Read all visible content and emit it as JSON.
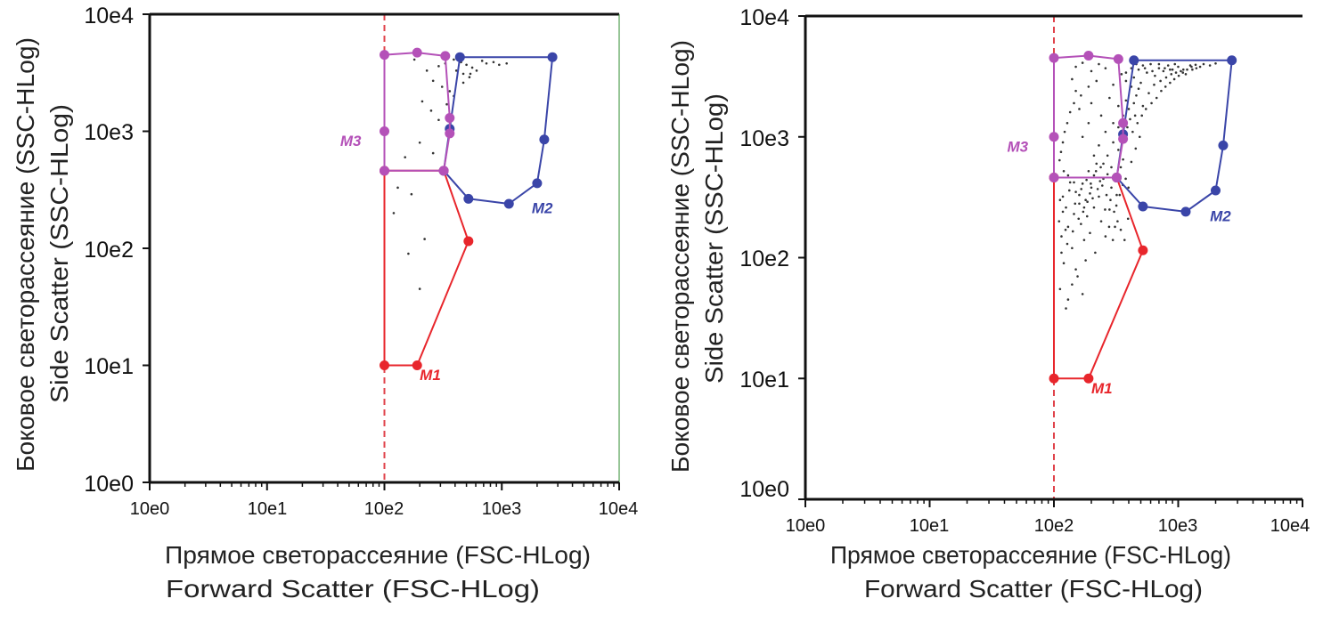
{
  "chart_data": [
    {
      "type": "scatter",
      "panel": "left",
      "xlabel_ru": "Прямое светорассеяние (FSC-HLog)",
      "xlabel_en": "Forward Scatter (FSC-HLog)",
      "ylabel_ru": "Боковое светорассеяние (SSC-HLog)",
      "ylabel_en": "Side Scatter (SSC-HLog)",
      "xscale": "log",
      "yscale": "log",
      "xlim": [
        1,
        10000
      ],
      "ylim": [
        1,
        10000
      ],
      "x_tick_labels": [
        "10e0",
        "10e1",
        "10e2",
        "10e3",
        "10e4"
      ],
      "y_tick_labels": [
        "10e0",
        "10e1",
        "10e2",
        "10e3",
        "10e4"
      ],
      "threshold": {
        "x": 100,
        "color": "#e0434b",
        "style": "dashed"
      },
      "gates": [
        {
          "name": "M1",
          "color": "#e8262c",
          "label_at": [
            200,
            7.5
          ],
          "vertices": [
            [
              100,
              460
            ],
            [
              320,
              460
            ],
            [
              520,
              115
            ],
            [
              190,
              10
            ],
            [
              100,
              10
            ]
          ]
        },
        {
          "name": "M2",
          "color": "#3a45a8",
          "label_at": [
            1800,
            200
          ],
          "vertices": [
            [
              440,
              4300
            ],
            [
              2700,
              4300
            ],
            [
              2300,
              850
            ],
            [
              2000,
              360
            ],
            [
              1150,
              240
            ],
            [
              520,
              265
            ],
            [
              320,
              460
            ],
            [
              360,
              1050
            ]
          ]
        },
        {
          "name": "M3",
          "color": "#b451b8",
          "label_at": [
            42,
            750
          ],
          "vertices": [
            [
              100,
              4500
            ],
            [
              190,
              4700
            ],
            [
              330,
              4400
            ],
            [
              360,
              1300
            ],
            [
              360,
              960
            ],
            [
              320,
              460
            ],
            [
              100,
              460
            ],
            [
              100,
              1000
            ]
          ]
        }
      ],
      "points": [
        [
          180,
          4100
        ],
        [
          230,
          3300
        ],
        [
          260,
          2700
        ],
        [
          290,
          3600
        ],
        [
          310,
          2400
        ],
        [
          330,
          3800
        ],
        [
          360,
          2200
        ],
        [
          390,
          4100
        ],
        [
          410,
          3300
        ],
        [
          450,
          3900
        ],
        [
          470,
          3100
        ],
        [
          500,
          3700
        ],
        [
          530,
          2900
        ],
        [
          560,
          3500
        ],
        [
          610,
          3300
        ],
        [
          680,
          4000
        ],
        [
          740,
          3800
        ],
        [
          850,
          3900
        ],
        [
          950,
          3700
        ],
        [
          1100,
          3800
        ],
        [
          210,
          1800
        ],
        [
          250,
          1500
        ],
        [
          290,
          1250
        ],
        [
          200,
          800
        ],
        [
          260,
          650
        ],
        [
          150,
          600
        ],
        [
          130,
          330
        ],
        [
          170,
          290
        ],
        [
          220,
          120
        ],
        [
          160,
          90
        ],
        [
          200,
          45
        ],
        [
          120,
          200
        ],
        [
          340,
          1700
        ],
        [
          390,
          2000
        ],
        [
          540,
          3100
        ],
        [
          470,
          2600
        ]
      ]
    },
    {
      "type": "scatter",
      "panel": "right",
      "xlabel_ru": "Прямое светорассеяние (FSC-HLog)",
      "xlabel_en": "Forward Scatter (FSC-HLog)",
      "ylabel_ru": "Боковое светорассеяние (SSC-HLog)",
      "ylabel_en": "Side Scatter (SSC-HLog)",
      "xscale": "log",
      "yscale": "log",
      "xlim": [
        1,
        10000
      ],
      "ylim": [
        1,
        10000
      ],
      "x_tick_labels": [
        "10e0",
        "10e1",
        "10e2",
        "10e3",
        "10e4"
      ],
      "y_tick_labels": [
        "10e0",
        "10e1",
        "10e2",
        "10e3",
        "10e4"
      ],
      "threshold": {
        "x": 100,
        "color": "#e0434b",
        "style": "dashed"
      },
      "gates": [
        {
          "name": "M1",
          "color": "#e8262c",
          "label_at": [
            200,
            7.5
          ],
          "vertices": [
            [
              100,
              460
            ],
            [
              320,
              460
            ],
            [
              520,
              115
            ],
            [
              190,
              10
            ],
            [
              100,
              10
            ]
          ]
        },
        {
          "name": "M2",
          "color": "#3a45a8",
          "label_at": [
            1800,
            200
          ],
          "vertices": [
            [
              440,
              4300
            ],
            [
              2700,
              4300
            ],
            [
              2300,
              850
            ],
            [
              2000,
              360
            ],
            [
              1150,
              240
            ],
            [
              520,
              265
            ],
            [
              320,
              460
            ],
            [
              360,
              1050
            ]
          ]
        },
        {
          "name": "M3",
          "color": "#b451b8",
          "label_at": [
            42,
            750
          ],
          "vertices": [
            [
              100,
              4500
            ],
            [
              190,
              4700
            ],
            [
              330,
              4400
            ],
            [
              360,
              1300
            ],
            [
              360,
              960
            ],
            [
              320,
              460
            ],
            [
              100,
              460
            ],
            [
              100,
              1000
            ]
          ]
        }
      ],
      "points": [
        [
          110,
          200
        ],
        [
          115,
          150
        ],
        [
          118,
          320
        ],
        [
          120,
          90
        ],
        [
          125,
          260
        ],
        [
          130,
          180
        ],
        [
          135,
          420
        ],
        [
          140,
          120
        ],
        [
          145,
          230
        ],
        [
          150,
          350
        ],
        [
          155,
          70
        ],
        [
          160,
          280
        ],
        [
          165,
          190
        ],
        [
          170,
          410
        ],
        [
          175,
          140
        ],
        [
          180,
          300
        ],
        [
          185,
          220
        ],
        [
          190,
          520
        ],
        [
          195,
          160
        ],
        [
          200,
          380
        ],
        [
          210,
          260
        ],
        [
          215,
          110
        ],
        [
          220,
          600
        ],
        [
          230,
          320
        ],
        [
          240,
          200
        ],
        [
          250,
          450
        ],
        [
          260,
          150
        ],
        [
          270,
          700
        ],
        [
          280,
          250
        ],
        [
          290,
          380
        ],
        [
          300,
          900
        ],
        [
          310,
          180
        ],
        [
          320,
          330
        ],
        [
          330,
          1200
        ],
        [
          345,
          560
        ],
        [
          360,
          1500
        ],
        [
          380,
          2000
        ],
        [
          400,
          1700
        ],
        [
          420,
          2600
        ],
        [
          440,
          3100
        ],
        [
          460,
          2200
        ],
        [
          480,
          3600
        ],
        [
          500,
          2800
        ],
        [
          520,
          3900
        ],
        [
          560,
          3400
        ],
        [
          600,
          4000
        ],
        [
          650,
          3200
        ],
        [
          700,
          3700
        ],
        [
          760,
          3500
        ],
        [
          830,
          3900
        ],
        [
          900,
          3600
        ],
        [
          1000,
          3800
        ],
        [
          1100,
          3600
        ],
        [
          1250,
          3900
        ],
        [
          1400,
          3700
        ],
        [
          130,
          45
        ],
        [
          140,
          60
        ],
        [
          125,
          38
        ],
        [
          150,
          80
        ],
        [
          112,
          55
        ],
        [
          170,
          50
        ],
        [
          180,
          95
        ],
        [
          260,
          1100
        ],
        [
          230,
          850
        ],
        [
          210,
          700
        ],
        [
          190,
          1300
        ],
        [
          170,
          1000
        ],
        [
          160,
          1700
        ],
        [
          150,
          2400
        ],
        [
          140,
          3000
        ],
        [
          200,
          1900
        ],
        [
          240,
          1500
        ],
        [
          280,
          2100
        ],
        [
          300,
          2700
        ],
        [
          330,
          1800
        ],
        [
          350,
          3300
        ],
        [
          380,
          2900
        ],
        [
          410,
          1400
        ],
        [
          440,
          1900
        ],
        [
          480,
          2500
        ],
        [
          360,
          650
        ],
        [
          330,
          780
        ],
        [
          290,
          560
        ],
        [
          270,
          490
        ],
        [
          250,
          600
        ],
        [
          235,
          430
        ],
        [
          210,
          480
        ],
        [
          195,
          340
        ],
        [
          175,
          260
        ],
        [
          160,
          330
        ],
        [
          145,
          420
        ],
        [
          130,
          480
        ],
        [
          120,
          520
        ],
        [
          300,
          1300
        ],
        [
          350,
          1000
        ],
        [
          390,
          1200
        ],
        [
          450,
          1500
        ],
        [
          520,
          1800
        ],
        [
          580,
          2300
        ],
        [
          640,
          2700
        ],
        [
          720,
          2900
        ],
        [
          800,
          3100
        ],
        [
          880,
          3300
        ],
        [
          960,
          3400
        ],
        [
          1050,
          3500
        ],
        [
          1150,
          3300
        ],
        [
          1300,
          3600
        ],
        [
          1500,
          3800
        ],
        [
          115,
          110
        ],
        [
          128,
          130
        ],
        [
          142,
          165
        ],
        [
          158,
          210
        ],
        [
          172,
          240
        ],
        [
          186,
          290
        ],
        [
          205,
          310
        ],
        [
          225,
          370
        ],
        [
          245,
          395
        ],
        [
          265,
          330
        ],
        [
          285,
          300
        ],
        [
          305,
          240
        ],
        [
          325,
          200
        ],
        [
          345,
          170
        ],
        [
          370,
          140
        ],
        [
          395,
          210
        ],
        [
          112,
          300
        ],
        [
          118,
          240
        ],
        [
          124,
          170
        ],
        [
          133,
          360
        ],
        [
          148,
          280
        ],
        [
          166,
          370
        ],
        [
          183,
          440
        ],
        [
          198,
          410
        ],
        [
          218,
          520
        ],
        [
          238,
          560
        ],
        [
          258,
          250
        ],
        [
          278,
          180
        ],
        [
          298,
          140
        ],
        [
          318,
          270
        ],
        [
          338,
          330
        ],
        [
          358,
          400
        ],
        [
          378,
          450
        ],
        [
          398,
          380
        ],
        [
          420,
          620
        ],
        [
          455,
          800
        ],
        [
          490,
          1000
        ],
        [
          430,
          1100
        ],
        [
          470,
          1300
        ],
        [
          510,
          1500
        ],
        [
          550,
          1700
        ],
        [
          610,
          1900
        ],
        [
          670,
          2100
        ],
        [
          730,
          2400
        ],
        [
          790,
          2600
        ],
        [
          860,
          2800
        ],
        [
          930,
          3000
        ],
        [
          1010,
          3200
        ],
        [
          1090,
          3400
        ],
        [
          1180,
          3600
        ],
        [
          1280,
          3800
        ],
        [
          1380,
          3950
        ],
        [
          1600,
          4000
        ],
        [
          1800,
          3900
        ],
        [
          2000,
          4050
        ],
        [
          150,
          3800
        ],
        [
          170,
          4100
        ],
        [
          200,
          3500
        ],
        [
          230,
          4000
        ],
        [
          260,
          3700
        ],
        [
          220,
          2900
        ],
        [
          190,
          2600
        ],
        [
          165,
          2200
        ],
        [
          145,
          1900
        ],
        [
          135,
          1600
        ],
        [
          128,
          1300
        ],
        [
          122,
          1100
        ],
        [
          118,
          900
        ],
        [
          114,
          750
        ],
        [
          111,
          640
        ],
        [
          380,
          3400
        ],
        [
          420,
          3700
        ],
        [
          460,
          4000
        ],
        [
          540,
          3700
        ],
        [
          620,
          3500
        ],
        [
          700,
          4000
        ],
        [
          780,
          3700
        ],
        [
          860,
          3600
        ],
        [
          940,
          4000
        ]
      ]
    }
  ]
}
